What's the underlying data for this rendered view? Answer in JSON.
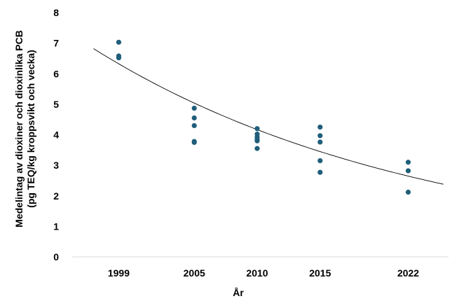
{
  "chart_data": {
    "type": "scatter",
    "title": "",
    "xlabel": "År",
    "ylabel_line1": "Medelintag av dioxiner och dioxinlika PCB",
    "ylabel_line2": "(pg TEQ/kg kroppsvikt och vecka)",
    "xlim": [
      1995.3,
      2025.2
    ],
    "ylim": [
      0,
      8
    ],
    "x_ticks": [
      {
        "value": 1999,
        "label": "1999"
      },
      {
        "value": 2005,
        "label": "2005"
      },
      {
        "value": 2010,
        "label": "2010"
      },
      {
        "value": 2015,
        "label": "2015"
      },
      {
        "value": 2022,
        "label": "2022"
      }
    ],
    "y_ticks": [
      {
        "value": 0,
        "label": "0"
      },
      {
        "value": 1,
        "label": "1"
      },
      {
        "value": 2,
        "label": "2"
      },
      {
        "value": 3,
        "label": "3"
      },
      {
        "value": 4,
        "label": "4"
      },
      {
        "value": 5,
        "label": "5"
      },
      {
        "value": 6,
        "label": "6"
      },
      {
        "value": 7,
        "label": "7"
      },
      {
        "value": 8,
        "label": "8"
      }
    ],
    "grid": false,
    "legend": "none",
    "series": [
      {
        "color": "#1f5e7a",
        "points": [
          {
            "x": 1999,
            "y": 7.03
          },
          {
            "x": 1999,
            "y": 6.58
          },
          {
            "x": 1999,
            "y": 6.52
          },
          {
            "x": 2005,
            "y": 4.87
          },
          {
            "x": 2005,
            "y": 4.55
          },
          {
            "x": 2005,
            "y": 4.3
          },
          {
            "x": 2005,
            "y": 3.78
          },
          {
            "x": 2005,
            "y": 3.75
          },
          {
            "x": 2010,
            "y": 4.2
          },
          {
            "x": 2010,
            "y": 4.02
          },
          {
            "x": 2010,
            "y": 3.93
          },
          {
            "x": 2010,
            "y": 3.86
          },
          {
            "x": 2010,
            "y": 3.8
          },
          {
            "x": 2010,
            "y": 3.55
          },
          {
            "x": 2015,
            "y": 4.25
          },
          {
            "x": 2015,
            "y": 3.97
          },
          {
            "x": 2015,
            "y": 3.76
          },
          {
            "x": 2015,
            "y": 3.15
          },
          {
            "x": 2015,
            "y": 2.77
          },
          {
            "x": 2022,
            "y": 3.1
          },
          {
            "x": 2022,
            "y": 2.82
          },
          {
            "x": 2022,
            "y": 2.12
          }
        ]
      }
    ],
    "trendline": {
      "type": "exponential",
      "color": "#000000",
      "x_start": 1997.0,
      "x_end": 2024.8,
      "y_at_start": 6.82,
      "y_at_end": 2.38
    }
  }
}
